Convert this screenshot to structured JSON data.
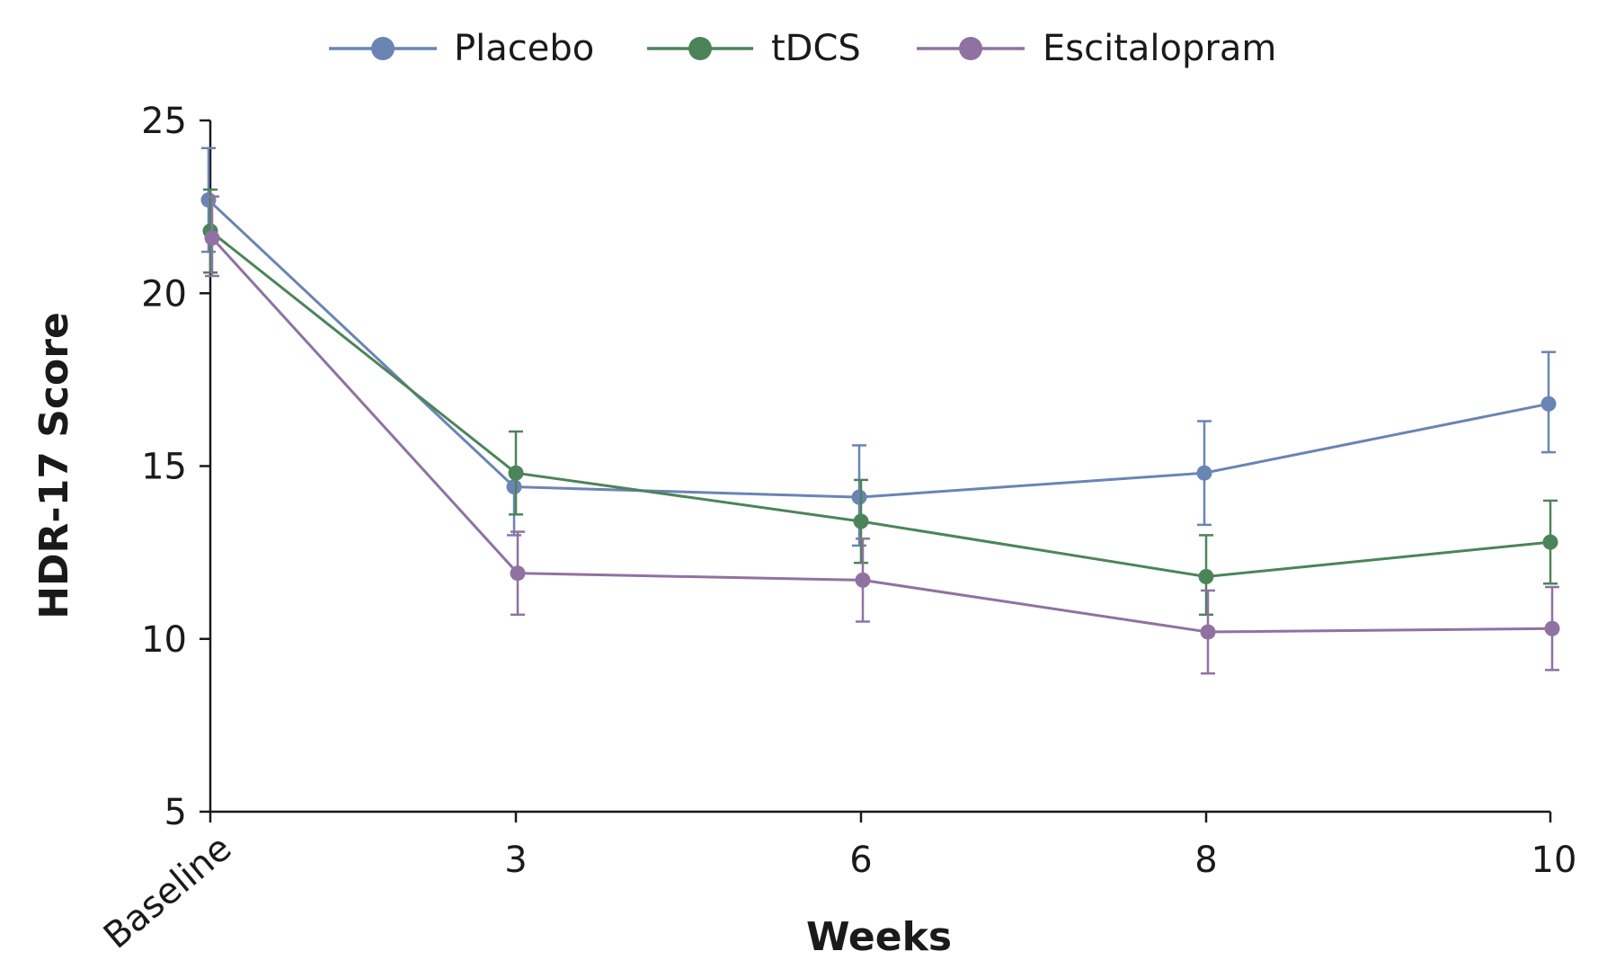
{
  "chart_data": {
    "type": "line",
    "title": "",
    "xlabel": "Weeks",
    "ylabel": "HDR-17 Score",
    "x": [
      0,
      3,
      6,
      8,
      10
    ],
    "x_tick_labels": [
      "Baseline",
      "3",
      "6",
      "8",
      "10"
    ],
    "y_ticks": [
      5,
      10,
      15,
      20,
      25
    ],
    "ylim": [
      5,
      25
    ],
    "legend_position": "top-center",
    "grid": false,
    "series": [
      {
        "name": "Placebo",
        "color": "#6a84b4",
        "values": [
          22.7,
          14.4,
          14.1,
          14.8,
          16.8
        ],
        "error_upper": [
          24.2,
          null,
          15.6,
          16.3,
          18.3
        ],
        "error_lower": [
          21.2,
          13.0,
          12.7,
          13.3,
          15.4
        ]
      },
      {
        "name": "tDCS",
        "color": "#4c8459",
        "values": [
          21.8,
          14.8,
          13.4,
          11.8,
          12.8
        ],
        "error_upper": [
          23.0,
          16.0,
          14.6,
          13.0,
          14.0
        ],
        "error_lower": [
          20.6,
          13.6,
          12.2,
          10.7,
          11.6
        ]
      },
      {
        "name": "Escitalopram",
        "color": "#8f72a2",
        "values": [
          21.6,
          11.9,
          11.7,
          10.2,
          10.3
        ],
        "error_upper": [
          22.8,
          13.1,
          12.9,
          11.4,
          11.5
        ],
        "error_lower": [
          20.5,
          10.7,
          10.5,
          9.0,
          9.1
        ]
      }
    ]
  }
}
